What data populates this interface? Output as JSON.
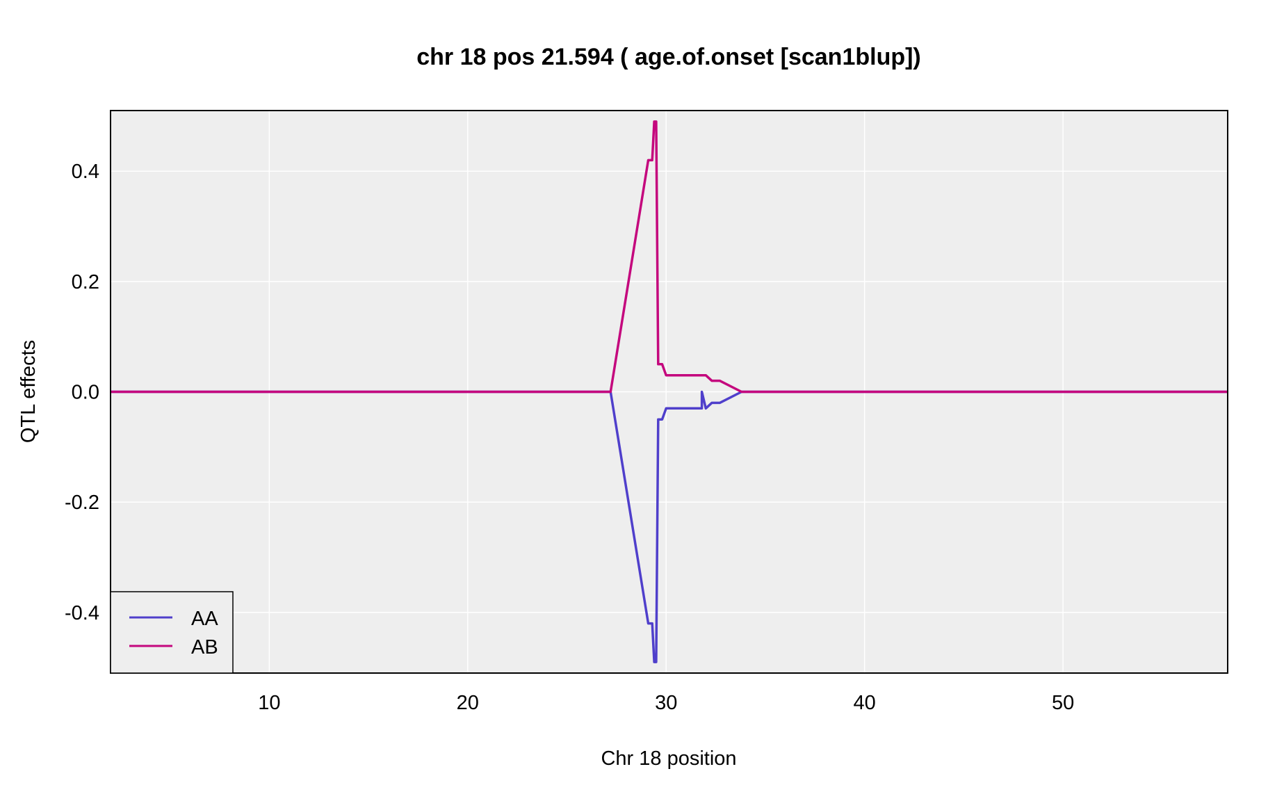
{
  "chart_data": {
    "type": "line",
    "title": "chr 18 pos 21.594 ( age.of.onset  [scan1blup])",
    "xlabel": "Chr 18 position",
    "ylabel": "QTL effects",
    "xlim": [
      2,
      58.3
    ],
    "ylim": [
      -0.51,
      0.51
    ],
    "xticks": [
      10,
      20,
      30,
      40,
      50
    ],
    "yticks": [
      -0.4,
      -0.2,
      0.0,
      0.2,
      0.4
    ],
    "xtick_labels": [
      "10",
      "20",
      "30",
      "40",
      "50"
    ],
    "ytick_labels": [
      "-0.4",
      "-0.2",
      "0.0",
      "0.2",
      "0.4"
    ],
    "grid": true,
    "background": "#eeeeee",
    "legend_position": "bottom-left",
    "series": [
      {
        "name": "AA",
        "color": "#4f3fcb",
        "x": [
          2,
          27.2,
          29.1,
          29.3,
          29.4,
          29.5,
          29.6,
          29.8,
          30.0,
          30.2,
          31.8,
          31.8,
          32.0,
          32.3,
          32.7,
          33.8,
          58.3
        ],
        "y": [
          0.0,
          0.0,
          -0.42,
          -0.42,
          -0.49,
          -0.49,
          -0.05,
          -0.05,
          -0.03,
          -0.03,
          -0.03,
          0.0,
          -0.03,
          -0.02,
          -0.02,
          0.0,
          0.0
        ]
      },
      {
        "name": "AB",
        "color": "#c4077d",
        "x": [
          2,
          27.2,
          29.1,
          29.3,
          29.4,
          29.5,
          29.6,
          29.8,
          30.0,
          30.2,
          31.8,
          32.0,
          32.3,
          32.7,
          33.8,
          58.3
        ],
        "y": [
          0.0,
          0.0,
          0.42,
          0.42,
          0.49,
          0.49,
          0.05,
          0.05,
          0.03,
          0.03,
          0.03,
          0.03,
          0.02,
          0.02,
          0.0,
          0.0
        ]
      }
    ]
  }
}
